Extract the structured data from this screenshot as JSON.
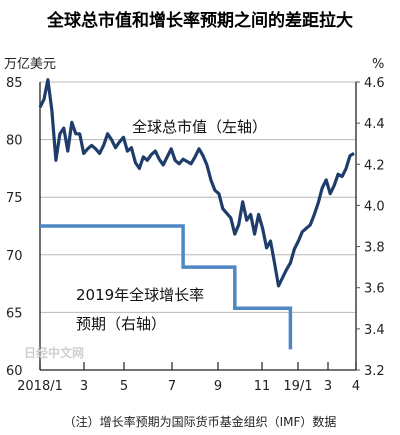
{
  "chart_data": {
    "type": "line",
    "title": "全球总市值和增长率预期之间的差距拉大",
    "left_unit": "万亿美元",
    "right_unit": "%",
    "x_tick_labels": [
      "2018/1",
      "3",
      "5",
      "7",
      "9",
      "11",
      "19/1",
      "3",
      "4"
    ],
    "left_axis": {
      "range": [
        60,
        85
      ],
      "ticks": [
        "85",
        "80",
        "75",
        "70",
        "65",
        "60"
      ]
    },
    "right_axis": {
      "range": [
        3.2,
        4.6
      ],
      "ticks": [
        "4.6",
        "4.4",
        "4.2",
        "4.0",
        "3.8",
        "3.6",
        "3.4",
        "3.2"
      ]
    },
    "grid": true,
    "series": [
      {
        "name": "全球总市值（左轴）",
        "axis": "left",
        "color": "#1f3d6b",
        "values": [
          82.8,
          83.5,
          85.2,
          82.5,
          78.2,
          80.5,
          81.0,
          79.0,
          81.5,
          80.5,
          80.5,
          78.8,
          79.2,
          79.5,
          79.2,
          78.8,
          79.5,
          80.5,
          80.0,
          79.3,
          79.8,
          80.2,
          79.0,
          79.3,
          78.0,
          77.5,
          78.5,
          78.2,
          78.7,
          79.0,
          78.3,
          77.8,
          78.5,
          79.2,
          78.2,
          77.9,
          78.3,
          78.1,
          77.9,
          78.5,
          79.2,
          78.6,
          77.8,
          76.5,
          75.6,
          75.3,
          74.0,
          73.6,
          73.2,
          71.8,
          72.6,
          74.6,
          73.0,
          73.5,
          71.8,
          73.5,
          72.3,
          70.6,
          71.2,
          69.3,
          67.3,
          68.0,
          68.7,
          69.3,
          70.5,
          71.2,
          72.0,
          72.3,
          72.6,
          73.5,
          74.5,
          75.8,
          76.5,
          75.3,
          76.0,
          77.0,
          76.8,
          77.5,
          78.6,
          78.8
        ]
      },
      {
        "name": "2019年全球增长率预期（右轴）",
        "axis": "right",
        "color": "#4e88c4",
        "points": [
          [
            0,
            3.9
          ],
          [
            36,
            3.9
          ],
          [
            36,
            3.7
          ],
          [
            49,
            3.7
          ],
          [
            49,
            3.5
          ],
          [
            63,
            3.5
          ],
          [
            63,
            3.3
          ]
        ]
      }
    ],
    "note": "（注）增长率预期为国际货币基金组织（IMF）数据",
    "watermark": "日经中文网"
  }
}
